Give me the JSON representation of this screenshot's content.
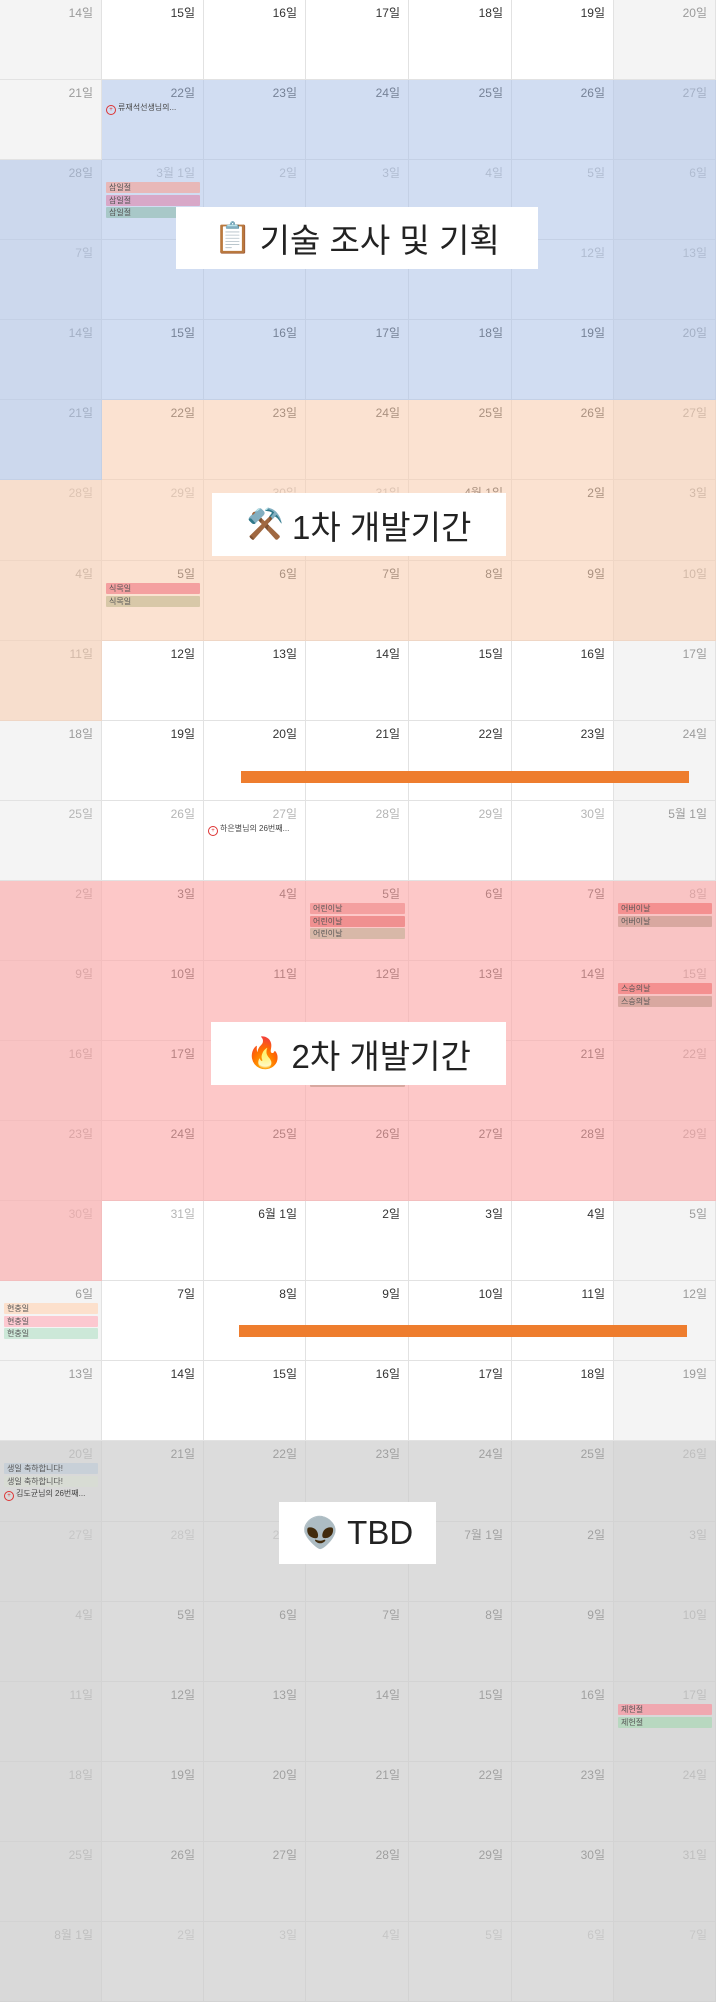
{
  "colors": {
    "planning": "rgba(171,193,232,0.55)",
    "dev1": "rgba(248,206,178,0.6)",
    "dev2": "rgba(252,170,170,0.65)",
    "tbd": "rgba(205,205,205,0.7)",
    "bar": "#ee7d2e"
  },
  "weeks": [
    [
      "14일",
      "15일",
      "16일",
      "17일",
      "18일",
      "19일",
      "20일"
    ],
    [
      "21일",
      "22일",
      "23일",
      "24일",
      "25일",
      "26일",
      "27일"
    ],
    [
      "28일",
      "3월 1일",
      "2일",
      "3일",
      "4일",
      "5일",
      "6일"
    ],
    [
      "7일",
      "8일",
      "9일",
      "10일",
      "11일",
      "12일",
      "13일"
    ],
    [
      "14일",
      "15일",
      "16일",
      "17일",
      "18일",
      "19일",
      "20일"
    ],
    [
      "21일",
      "22일",
      "23일",
      "24일",
      "25일",
      "26일",
      "27일"
    ],
    [
      "28일",
      "29일",
      "30일",
      "31일",
      "4월 1일",
      "2일",
      "3일"
    ],
    [
      "4일",
      "5일",
      "6일",
      "7일",
      "8일",
      "9일",
      "10일"
    ],
    [
      "11일",
      "12일",
      "13일",
      "14일",
      "15일",
      "16일",
      "17일"
    ],
    [
      "18일",
      "19일",
      "20일",
      "21일",
      "22일",
      "23일",
      "24일"
    ],
    [
      "25일",
      "26일",
      "27일",
      "28일",
      "29일",
      "30일",
      "5월 1일"
    ],
    [
      "2일",
      "3일",
      "4일",
      "5일",
      "6일",
      "7일",
      "8일"
    ],
    [
      "9일",
      "10일",
      "11일",
      "12일",
      "13일",
      "14일",
      "15일"
    ],
    [
      "16일",
      "17일",
      "18일",
      "19일",
      "20일",
      "21일",
      "22일"
    ],
    [
      "23일",
      "24일",
      "25일",
      "26일",
      "27일",
      "28일",
      "29일"
    ],
    [
      "30일",
      "31일",
      "6월 1일",
      "2일",
      "3일",
      "4일",
      "5일"
    ],
    [
      "6일",
      "7일",
      "8일",
      "9일",
      "10일",
      "11일",
      "12일"
    ],
    [
      "13일",
      "14일",
      "15일",
      "16일",
      "17일",
      "18일",
      "19일"
    ],
    [
      "20일",
      "21일",
      "22일",
      "23일",
      "24일",
      "25일",
      "26일"
    ],
    [
      "27일",
      "28일",
      "29일",
      "30일",
      "7월 1일",
      "2일",
      "3일"
    ],
    [
      "4일",
      "5일",
      "6일",
      "7일",
      "8일",
      "9일",
      "10일"
    ],
    [
      "11일",
      "12일",
      "13일",
      "14일",
      "15일",
      "16일",
      "17일"
    ],
    [
      "18일",
      "19일",
      "20일",
      "21일",
      "22일",
      "23일",
      "24일"
    ],
    [
      "25일",
      "26일",
      "27일",
      "28일",
      "29일",
      "30일",
      "31일"
    ],
    [
      "8월 1일",
      "2일",
      "3일",
      "4일",
      "5일",
      "6일",
      "7일"
    ]
  ],
  "dimmed": [
    [
      2,
      1
    ],
    [
      2,
      2
    ],
    [
      2,
      3
    ],
    [
      2,
      4
    ],
    [
      2,
      5
    ],
    [
      2,
      6
    ],
    [
      3,
      0
    ],
    [
      3,
      1
    ],
    [
      3,
      2
    ],
    [
      3,
      3
    ],
    [
      3,
      4
    ],
    [
      3,
      5
    ],
    [
      3,
      6
    ],
    [
      6,
      0
    ],
    [
      6,
      1
    ],
    [
      6,
      2
    ],
    [
      6,
      3
    ],
    [
      10,
      0
    ],
    [
      10,
      1
    ],
    [
      10,
      2
    ],
    [
      10,
      3
    ],
    [
      10,
      4
    ],
    [
      10,
      5
    ],
    [
      15,
      0
    ],
    [
      15,
      1
    ],
    [
      19,
      0
    ],
    [
      19,
      1
    ],
    [
      19,
      2
    ],
    [
      19,
      3
    ],
    [
      24,
      1
    ],
    [
      24,
      2
    ],
    [
      24,
      3
    ],
    [
      24,
      4
    ],
    [
      24,
      5
    ],
    [
      24,
      6
    ]
  ],
  "phases": {
    "planning": {
      "label": "기술 조사 및 기획",
      "icon": "clipboard-icon",
      "glyph": "📋"
    },
    "dev1": {
      "label": "1차 개발기간",
      "icon": "hammer-wrench-icon",
      "glyph": "⚒️"
    },
    "dev2": {
      "label": "2차 개발기간",
      "icon": "fire-icon",
      "glyph": "🔥"
    },
    "tbd": {
      "label": "TBD",
      "icon": "alien-icon",
      "glyph": "👽"
    }
  },
  "events": [
    {
      "week": 2,
      "day": 1,
      "row": 0,
      "text": "삼일절",
      "color": "#e8b8b8"
    },
    {
      "week": 2,
      "day": 1,
      "row": 1,
      "text": "삼일절",
      "color": "#d8a8c8"
    },
    {
      "week": 2,
      "day": 1,
      "row": 2,
      "text": "삼일절",
      "color": "#a8c8c8"
    },
    {
      "week": 7,
      "day": 1,
      "row": 0,
      "text": "식목일",
      "color": "#f4a0a0"
    },
    {
      "week": 7,
      "day": 1,
      "row": 1,
      "text": "식목일",
      "color": "#d8c8a8"
    },
    {
      "week": 11,
      "day": 3,
      "row": 0,
      "text": "어린이날",
      "color": "#f4a0a0"
    },
    {
      "week": 11,
      "day": 3,
      "row": 1,
      "text": "어린이날",
      "color": "#f09090"
    },
    {
      "week": 11,
      "day": 3,
      "row": 2,
      "text": "어린이날",
      "color": "#d8b8a8"
    },
    {
      "week": 11,
      "day": 6,
      "row": 0,
      "text": "어버이날",
      "color": "#f49090"
    },
    {
      "week": 11,
      "day": 6,
      "row": 1,
      "text": "어버이날",
      "color": "#d8a8a0"
    },
    {
      "week": 12,
      "day": 6,
      "row": 0,
      "text": "스승의날",
      "color": "#f49090"
    },
    {
      "week": 12,
      "day": 6,
      "row": 1,
      "text": "스승의날",
      "color": "#d8a8a0"
    },
    {
      "week": 13,
      "day": 3,
      "row": 0,
      "text": "석가탄신일",
      "color": "#f08888"
    },
    {
      "week": 13,
      "day": 3,
      "row": 1,
      "text": "석가탄신일",
      "color": "#d8a8a0"
    },
    {
      "week": 16,
      "day": 0,
      "row": 0,
      "text": "현충일",
      "color": "#fce0cc"
    },
    {
      "week": 16,
      "day": 0,
      "row": 1,
      "text": "현충일",
      "color": "#fcc8d0"
    },
    {
      "week": 16,
      "day": 0,
      "row": 2,
      "text": "현충일",
      "color": "#cce8d8"
    },
    {
      "week": 18,
      "day": 0,
      "row": 0,
      "text": "생일 축하합니다!",
      "color": "#c8d0d8"
    },
    {
      "week": 18,
      "day": 0,
      "row": 1,
      "text": "생일 축하합니다!",
      "color": "#d8dcd4"
    },
    {
      "week": 21,
      "day": 6,
      "row": 0,
      "text": "제헌절",
      "color": "#f0a8b0"
    },
    {
      "week": 21,
      "day": 6,
      "row": 1,
      "text": "제헌절",
      "color": "#b8d8c0"
    }
  ],
  "birthdays": [
    {
      "week": 1,
      "day": 1,
      "row": 0,
      "text": "류재석선생님의..."
    },
    {
      "week": 10,
      "day": 2,
      "row": 0,
      "text": "하은별님의 26번째..."
    },
    {
      "week": 18,
      "day": 0,
      "row": 2,
      "text": "김도균님의 26번째..."
    }
  ]
}
